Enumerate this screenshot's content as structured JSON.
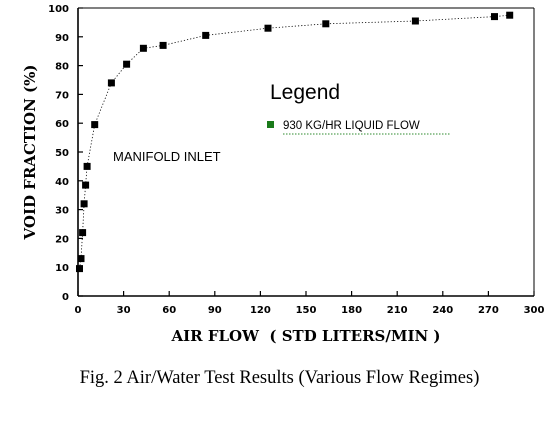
{
  "caption": "Fig. 2   Air/Water Test Results (Various Flow Regimes)",
  "chart_data": {
    "type": "scatter",
    "title": "",
    "xlabel": "AIR FLOW  ( STD LITERS/MIN )",
    "ylabel": "VOID FRACTION (%)",
    "xlim": [
      0,
      300
    ],
    "ylim": [
      0,
      100
    ],
    "xticks": [
      0,
      30,
      60,
      90,
      120,
      150,
      180,
      210,
      240,
      270,
      300
    ],
    "yticks": [
      0,
      10,
      20,
      30,
      40,
      50,
      60,
      70,
      80,
      90,
      100
    ],
    "grid": false,
    "legend": {
      "title": "Legend",
      "placement": "right",
      "entries": [
        "930 KG/HR LIQUID FLOW"
      ]
    },
    "annotations": [
      {
        "text": "MANIFOLD INLET"
      }
    ],
    "series": [
      {
        "name": "930 KG/HR LIQUID FLOW",
        "marker": "square",
        "color": "#000000",
        "legend_marker_color": "#1a7a1a",
        "x": [
          1,
          2,
          3,
          4,
          5,
          6,
          11,
          22,
          32,
          43,
          56,
          84,
          125,
          163,
          222,
          274,
          284
        ],
        "y": [
          9.5,
          13,
          22,
          32,
          38.5,
          45,
          59.5,
          74,
          80.5,
          86,
          87,
          90.5,
          93,
          94.5,
          95.5,
          97,
          97.5
        ]
      }
    ]
  }
}
